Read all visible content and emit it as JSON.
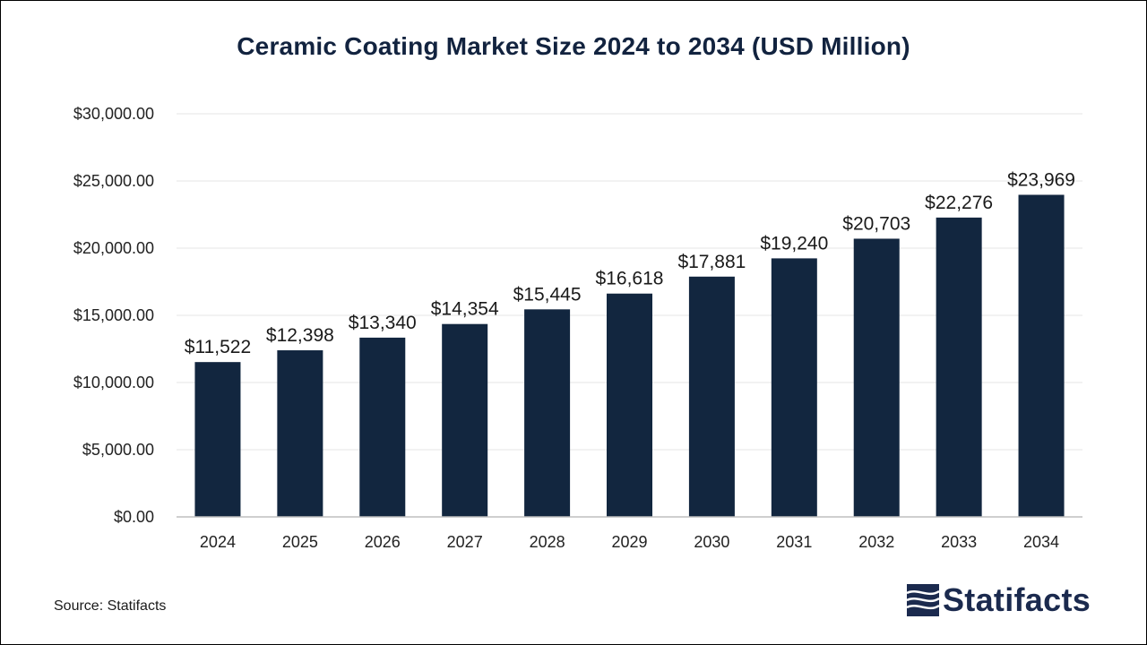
{
  "chart_data": {
    "type": "bar",
    "title": "Ceramic Coating Market Size 2024 to 2034 (USD Million)",
    "categories": [
      "2024",
      "2025",
      "2026",
      "2027",
      "2028",
      "2029",
      "2030",
      "2031",
      "2032",
      "2033",
      "2034"
    ],
    "values": [
      11522,
      12398,
      13340,
      14354,
      15445,
      16618,
      17881,
      19240,
      20703,
      22276,
      23969
    ],
    "data_labels": [
      "$11,522",
      "$12,398",
      "$13,340",
      "$14,354",
      "$15,445",
      "$16,618",
      "$17,881",
      "$19,240",
      "$20,703",
      "$22,276",
      "$23,969"
    ],
    "ylim": [
      0,
      30000
    ],
    "yticks": [
      0,
      5000,
      10000,
      15000,
      20000,
      25000,
      30000
    ],
    "ytick_labels": [
      "$0.00",
      "$5,000.00",
      "$10,000.00",
      "$15,000.00",
      "$20,000.00",
      "$25,000.00",
      "$30,000.00"
    ],
    "xlabel": "",
    "ylabel": "",
    "grid": true,
    "legend": "none",
    "bar_color": "#12263f"
  },
  "footer": {
    "source": "Source: Statifacts",
    "brand": "Statifacts",
    "brand_color": "#1b2a4e"
  }
}
